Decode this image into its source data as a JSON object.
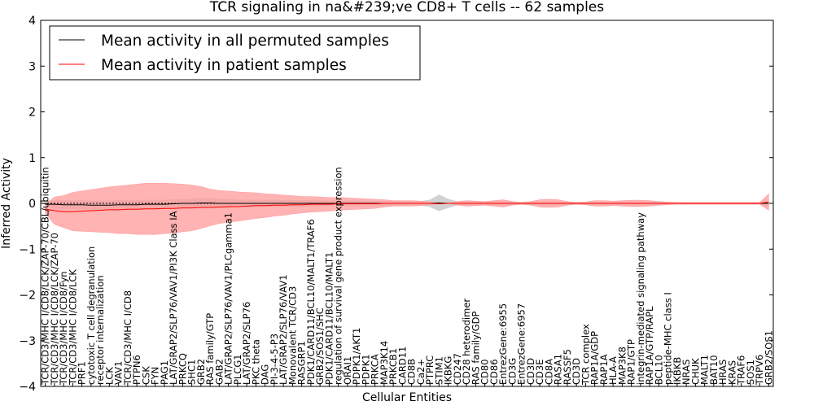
{
  "chart_data": {
    "type": "line",
    "title": "TCR signaling in na&#239;ve CD8+ T cells -- 62 samples",
    "xlabel": "Cellular Entities",
    "ylabel": "Inferred Activity",
    "ylim": [
      -4,
      4
    ],
    "yticks": [
      "4",
      "3",
      "2",
      "1",
      "0",
      "−1",
      "−2",
      "−3",
      "−4"
    ],
    "legend": {
      "position": "top-left",
      "entries": [
        {
          "label": "Mean activity in all permuted samples",
          "color": "#000000"
        },
        {
          "label": "Mean activity in patient samples",
          "color": "#ff0000"
        }
      ]
    },
    "colors": {
      "permuted": "#000000",
      "patient": "#ff0000",
      "patient_band": "#ff9a9a",
      "permuted_band": "#bfbfbf"
    },
    "categories": [
      "TCR/CD3/MHC I/CD8/LCK/ZAP-70/CBL/ubiquitin",
      "TCR/CD3/MHC I/CD8/LCK/ZAP-70",
      "TCR/CD3/MHC I/CD8/Fyn",
      "TCR/CD3/MHC I/CD8/LCK",
      "PRF1",
      "cytotoxic T cell degranulation",
      "receptor internalization",
      "LCK",
      "VAV1",
      "TCR/CD3/MHC I/CD8",
      "PTPN6",
      "CSK",
      "FYN",
      "PAG1",
      "LAT/GRAP2/SLP76/VAV1/PI3K Class IA",
      "PRKCQ",
      "SHC1",
      "GRB2",
      "RAS family/GTP",
      "GAB2",
      "LAT/GRAP2/SLP76/VAV1/PLCgamma1",
      "PLCG1",
      "LAT/GRAP2/SLP76",
      "PKC theta",
      "DAG",
      "PI-3-4-5-P3",
      "LAT/GRAP2/SLP76/VAV1",
      "Monovalent TCR/CD3",
      "RASGRP1",
      "PDK1/CARD11/BCL10/MALT1/TRAF6",
      "GRB2/SOS1/SHC",
      "PDK1/CARD11/BCL10/MALT1",
      "regulation of survival gene product expression",
      "ORAI1",
      "PDPK1/AKT1",
      "PDPK1",
      "PRKCA",
      "MAP3K14",
      "PRKCB1",
      "CARD11",
      "CD8B",
      "Ca2+",
      "PTPRC",
      "STIM1",
      "IKBKG",
      "CD247",
      "CD28 heterodimer",
      "RAS family/GDP",
      "CD80",
      "CD86",
      "EntrezGene:6955",
      "CD3G",
      "EntrezGene:6957",
      "CD3D",
      "CD3E",
      "CD8A",
      "RASA1",
      "RASSF5",
      "CD3D",
      "TCR complex",
      "RAP1A/GDP",
      "RAP1A",
      "HLA-A",
      "MAP3K8",
      "RAP1/GTP",
      "integrin-mediated signaling pathway",
      "RAP1A/GTP/RAPL",
      "BCL10",
      "peptide-MHC class I",
      "IKBKB",
      "NRAS",
      "CHUK",
      "MALT1",
      "BAT10",
      "HRAS",
      "KRAS",
      "TRAF6",
      "SOS1",
      "TRPV6",
      "GRB2/SOS1"
    ],
    "series": [
      {
        "name": "Mean activity in all permuted samples",
        "values": [
          -0.02,
          -0.02,
          -0.03,
          -0.03,
          -0.03,
          -0.04,
          -0.04,
          -0.04,
          -0.03,
          -0.03,
          -0.03,
          -0.02,
          -0.02,
          -0.02,
          -0.01,
          0.0,
          0.0,
          0.01,
          0.01,
          0.0,
          0.0,
          0.0,
          0.0,
          0.0,
          0.0,
          0.0,
          0.0,
          0.0,
          0.0,
          0.0,
          0.0,
          0.0,
          0.0,
          0.0,
          0.0,
          0.0,
          0.0,
          0.0,
          0.0,
          0.0,
          0.0,
          0.0,
          0.0,
          0.01,
          0.0,
          0.0,
          0.0,
          0.0,
          0.0,
          0.0,
          0.0,
          0.0,
          0.0,
          0.0,
          0.0,
          0.0,
          0.0,
          0.0,
          0.0,
          0.0,
          0.0,
          0.0,
          0.0,
          0.0,
          0.0,
          0.0,
          0.0,
          0.0,
          0.0,
          0.0,
          0.0,
          0.0,
          0.0,
          0.0,
          0.0,
          0.0,
          0.0,
          0.0,
          0.0,
          0.0
        ]
      },
      {
        "name": "Mean activity in patient samples",
        "values": [
          -0.12,
          -0.16,
          -0.18,
          -0.18,
          -0.17,
          -0.16,
          -0.15,
          -0.14,
          -0.14,
          -0.13,
          -0.13,
          -0.12,
          -0.12,
          -0.11,
          -0.11,
          -0.1,
          -0.1,
          -0.09,
          -0.09,
          -0.08,
          -0.07,
          -0.07,
          -0.06,
          -0.05,
          -0.05,
          -0.04,
          -0.04,
          -0.03,
          -0.03,
          -0.02,
          -0.02,
          -0.02,
          -0.01,
          -0.01,
          -0.01,
          -0.01,
          -0.01,
          0.0,
          0.0,
          0.0,
          0.0,
          0.0,
          0.0,
          -0.01,
          0.0,
          0.0,
          0.0,
          0.0,
          0.0,
          0.0,
          0.0,
          0.0,
          0.0,
          0.0,
          0.0,
          0.0,
          0.0,
          0.0,
          0.0,
          0.0,
          0.0,
          0.0,
          0.0,
          0.0,
          0.0,
          0.0,
          0.0,
          0.0,
          0.0,
          0.0,
          0.0,
          0.0,
          0.0,
          0.0,
          0.0,
          0.0,
          0.0,
          0.0,
          0.0,
          0.03
        ]
      }
    ],
    "patient_band_halfwidth": [
      0.1,
      0.3,
      0.35,
      0.42,
      0.44,
      0.46,
      0.48,
      0.5,
      0.52,
      0.53,
      0.55,
      0.56,
      0.56,
      0.55,
      0.54,
      0.52,
      0.5,
      0.46,
      0.4,
      0.36,
      0.34,
      0.32,
      0.3,
      0.28,
      0.26,
      0.24,
      0.22,
      0.2,
      0.18,
      0.17,
      0.16,
      0.15,
      0.14,
      0.13,
      0.12,
      0.11,
      0.1,
      0.08,
      0.06,
      0.06,
      0.06,
      0.05,
      0.03,
      0.0,
      0.0,
      0.04,
      0.06,
      0.05,
      0.04,
      0.06,
      0.08,
      0.04,
      0.02,
      0.04,
      0.08,
      0.09,
      0.08,
      0.04,
      0.02,
      0.03,
      0.06,
      0.06,
      0.05,
      0.06,
      0.07,
      0.07,
      0.06,
      0.04,
      0.03,
      0.02,
      0.02,
      0.02,
      0.02,
      0.02,
      0.02,
      0.02,
      0.02,
      0.02,
      0.02,
      0.18
    ],
    "permuted_band_halfwidth": [
      0.05,
      0.1,
      0.1,
      0.1,
      0.1,
      0.1,
      0.1,
      0.1,
      0.1,
      0.1,
      0.1,
      0.1,
      0.1,
      0.1,
      0.1,
      0.1,
      0.1,
      0.1,
      0.1,
      0.1,
      0.1,
      0.08,
      0.08,
      0.08,
      0.08,
      0.08,
      0.07,
      0.07,
      0.07,
      0.07,
      0.07,
      0.06,
      0.06,
      0.06,
      0.06,
      0.05,
      0.05,
      0.05,
      0.05,
      0.05,
      0.04,
      0.05,
      0.08,
      0.18,
      0.1,
      0.04,
      0.04,
      0.04,
      0.04,
      0.04,
      0.04,
      0.03,
      0.03,
      0.03,
      0.03,
      0.03,
      0.03,
      0.03,
      0.03,
      0.03,
      0.03,
      0.03,
      0.03,
      0.03,
      0.03,
      0.03,
      0.03,
      0.03,
      0.02,
      0.02,
      0.02,
      0.02,
      0.02,
      0.02,
      0.02,
      0.02,
      0.02,
      0.02,
      0.02,
      0.05
    ]
  }
}
